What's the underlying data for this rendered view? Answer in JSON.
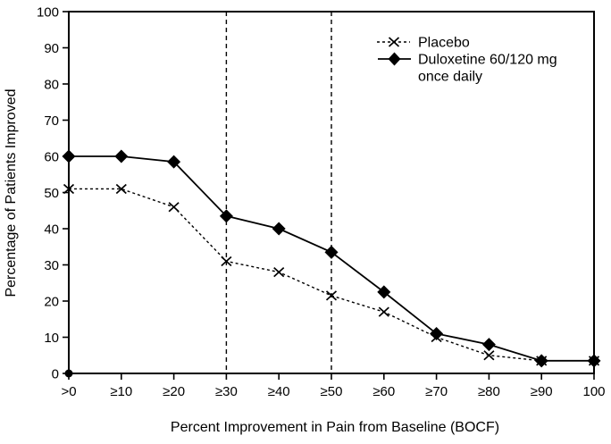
{
  "figure": {
    "background": "#ffffff",
    "line_color": "#000000"
  },
  "chart_data": {
    "type": "line",
    "title": "",
    "xlabel": "Percent Improvement in Pain from Baseline (BOCF)",
    "ylabel": "Percentage of Patients Improved",
    "x_labels": [
      ">0",
      "≥10",
      "≥20",
      "≥30",
      "≥40",
      "≥50",
      "≥60",
      "≥70",
      "≥80",
      "≥90",
      "100"
    ],
    "y_ticks": [
      0,
      10,
      20,
      30,
      40,
      50,
      60,
      70,
      80,
      90,
      100
    ],
    "ylim": [
      0,
      100
    ],
    "grid": false,
    "reference_lines_at_x_labels": [
      "≥30",
      "≥50"
    ],
    "origin_point_marker": true,
    "series": [
      {
        "name": "Placebo",
        "marker": "x",
        "line_style": "dashed",
        "color": "#000000",
        "values": [
          51,
          51,
          46,
          31,
          28,
          21.5,
          17,
          10,
          5,
          3.5,
          3.5
        ]
      },
      {
        "name": "Duloxetine 60/120 mg once daily",
        "marker": "diamond",
        "line_style": "solid",
        "color": "#000000",
        "values": [
          60,
          60,
          58.5,
          43.5,
          40,
          33.5,
          22.5,
          11,
          8,
          3.5,
          3.5
        ]
      }
    ],
    "legend": {
      "position": "top-right",
      "items": [
        {
          "icon": "x-marker-icon",
          "lines": [
            "Placebo"
          ]
        },
        {
          "icon": "diamond-marker-icon",
          "lines": [
            "Duloxetine 60/120 mg",
            "once daily"
          ]
        }
      ]
    }
  }
}
